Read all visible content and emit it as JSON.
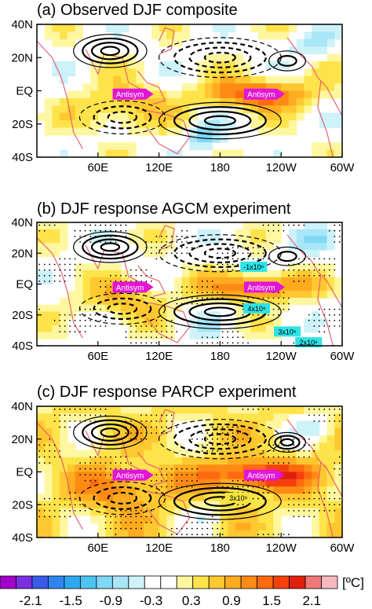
{
  "figure": {
    "colorbar": {
      "unit": "[ºC]",
      "tick_labels": [
        "-2.1",
        "-1.5",
        "-0.9",
        "-0.3",
        "0.3",
        "0.9",
        "1.5",
        "2.1"
      ],
      "colors": [
        "#a000c8",
        "#7a30e0",
        "#3a5be8",
        "#2d86f0",
        "#2fa8f0",
        "#4cc4f2",
        "#7fd8f6",
        "#a8e6f8",
        "#cdf2fa",
        "#ffffff",
        "#ffffff",
        "#fff7a0",
        "#ffe34a",
        "#ffc830",
        "#ffab20",
        "#ff8a14",
        "#ff6a10",
        "#f5400e",
        "#e0200c",
        "#f07878",
        "#f8b8c0"
      ]
    }
  },
  "chart_data": [
    {
      "type": "heatmap",
      "title": "(a) Observed DJF composite",
      "x_tick_labels": [
        "60E",
        "120E",
        "180",
        "120W",
        "60W"
      ],
      "y_tick_labels": [
        "40N",
        "20N",
        "EQ",
        "20S",
        "40S"
      ],
      "xlim": [
        "0E",
        "60W"
      ],
      "ylim": [
        "40S",
        "40N"
      ],
      "annotations": [
        "Antisym",
        "Antisym"
      ],
      "stippling": false
    },
    {
      "type": "heatmap",
      "title": "(b) DJF response AGCM experiment",
      "x_tick_labels": [
        "60E",
        "120E",
        "180",
        "120W",
        "60W"
      ],
      "y_tick_labels": [
        "40N",
        "20N",
        "EQ",
        "20S",
        "40S"
      ],
      "xlim": [
        "0E",
        "60W"
      ],
      "ylim": [
        "40S",
        "40N"
      ],
      "annotations": [
        "Antisym",
        "Antisym"
      ],
      "contour_labels": [
        "-1x10⁶",
        "4x10⁶",
        "3x10⁶",
        "2x10⁶"
      ],
      "stippling": true
    },
    {
      "type": "heatmap",
      "title": "(c) DJF response PARCP experiment",
      "x_tick_labels": [
        "60E",
        "120E",
        "180",
        "120W",
        "60W"
      ],
      "y_tick_labels": [
        "40N",
        "20N",
        "EQ",
        "20S",
        "40S"
      ],
      "xlim": [
        "0E",
        "60W"
      ],
      "ylim": [
        "40S",
        "40N"
      ],
      "annotations": [
        "Antisym",
        "Antisym"
      ],
      "contour_labels": [
        "3x10⁶"
      ],
      "stippling": true
    }
  ]
}
